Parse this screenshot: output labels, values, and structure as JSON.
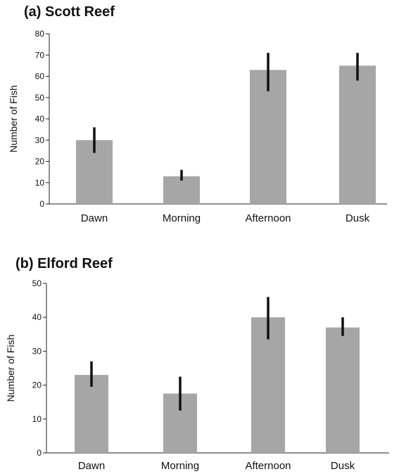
{
  "chart_data": [
    {
      "type": "bar",
      "title": "(a) Scott Reef",
      "xlabel": "",
      "ylabel": "Number of Fish",
      "categories": [
        "Dawn",
        "Morning",
        "Afternoon",
        "Dusk"
      ],
      "values": [
        30,
        13,
        63,
        65
      ],
      "error_bars": [
        [
          24,
          36
        ],
        [
          11,
          16
        ],
        [
          53,
          71
        ],
        [
          58,
          71
        ]
      ],
      "ylim": [
        0,
        80
      ],
      "yticks": [
        0,
        10,
        20,
        30,
        40,
        50,
        60,
        70,
        80
      ],
      "grid": false,
      "bar_color": "#a6a6a6",
      "error_color": "#111111"
    },
    {
      "type": "bar",
      "title": "(b) Elford Reef",
      "xlabel": "",
      "ylabel": "Number of Fish",
      "categories": [
        "Dawn",
        "Morning",
        "Afternoon",
        "Dusk"
      ],
      "values": [
        23,
        17.5,
        40,
        37
      ],
      "error_bars": [
        [
          19.5,
          27
        ],
        [
          12.5,
          22.5
        ],
        [
          33.5,
          46
        ],
        [
          34.5,
          40
        ]
      ],
      "ylim": [
        0,
        50
      ],
      "yticks": [
        0,
        10,
        20,
        30,
        40,
        50
      ],
      "grid": false,
      "bar_color": "#a6a6a6",
      "error_color": "#111111"
    }
  ]
}
